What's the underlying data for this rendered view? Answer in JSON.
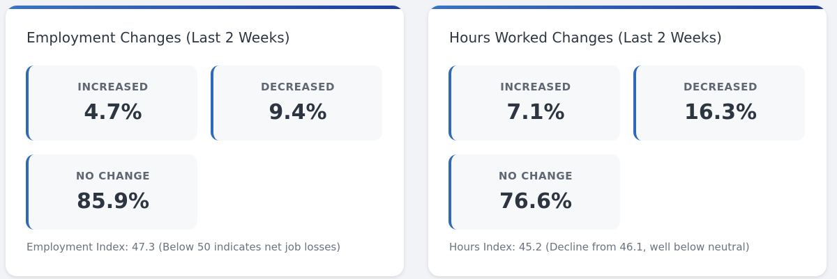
{
  "panels": [
    {
      "title": "Employment Changes (Last 2 Weeks)",
      "stats": [
        {
          "label": "INCREASED",
          "value": "4.7%"
        },
        {
          "label": "DECREASED",
          "value": "9.4%"
        },
        {
          "label": "NO CHANGE",
          "value": "85.9%"
        }
      ],
      "note": "Employment Index: 47.3 (Below 50 indicates net job losses)"
    },
    {
      "title": "Hours Worked Changes (Last 2 Weeks)",
      "stats": [
        {
          "label": "INCREASED",
          "value": "7.1%"
        },
        {
          "label": "DECREASED",
          "value": "16.3%"
        },
        {
          "label": "NO CHANGE",
          "value": "76.6%"
        }
      ],
      "note": "Hours Index: 45.2 (Decline from 46.1, well below neutral)"
    }
  ],
  "colors": {
    "accent": "#2f6ab8",
    "accent_gradient_end": "#1f3f9e",
    "card_bg": "#ffffff",
    "stat_bg": "#f7f8fa",
    "text_dark": "#2c3540",
    "text_muted": "#6b7280"
  }
}
